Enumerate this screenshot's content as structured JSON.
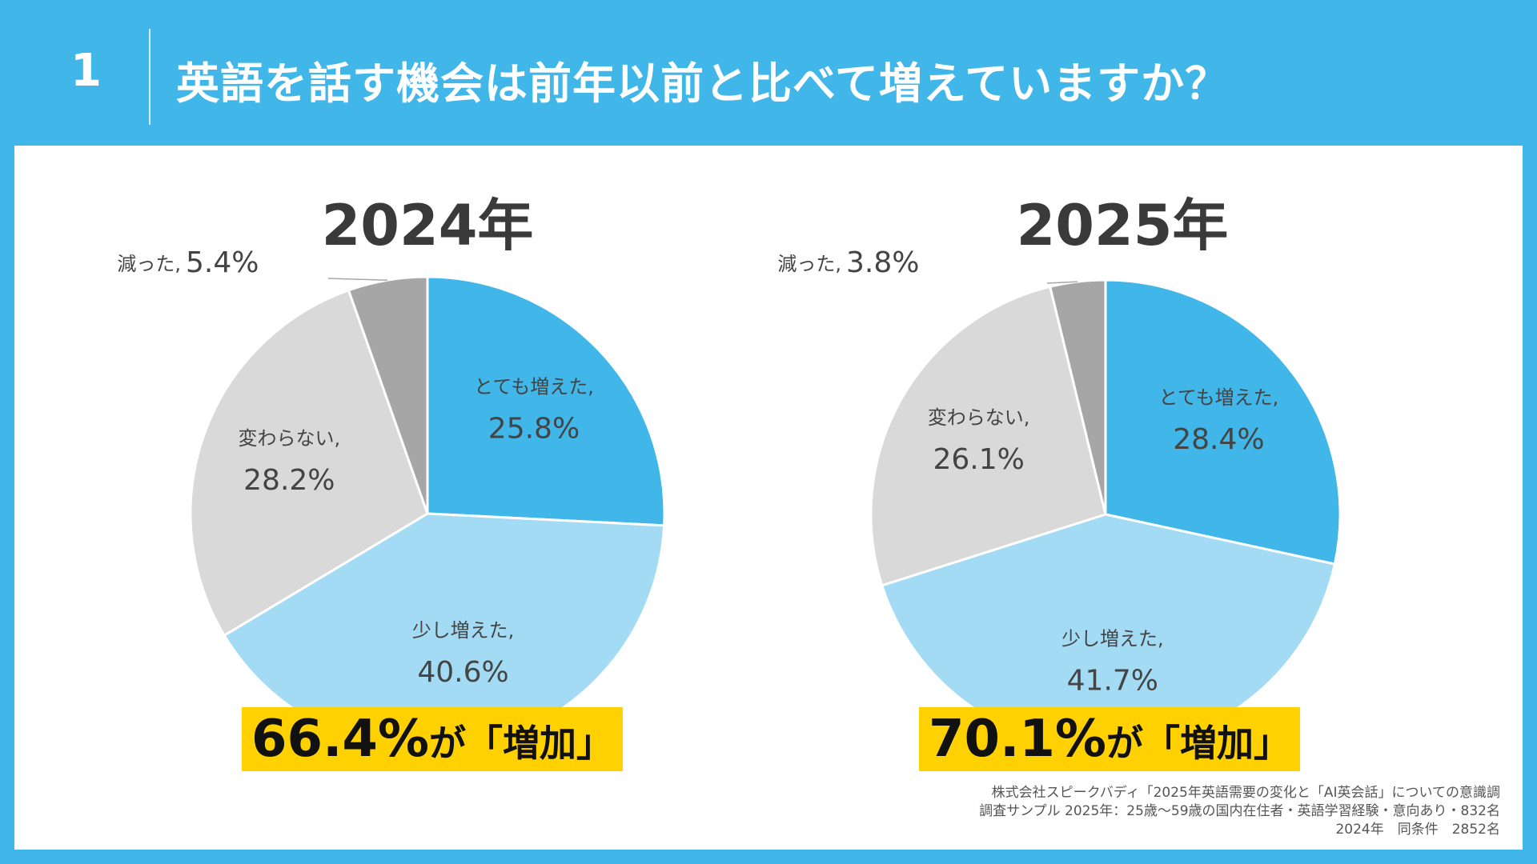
{
  "header": {
    "number": "1",
    "title": "英語を話す機会は前年以前と比べて増えていますか？"
  },
  "colors": {
    "background": "#41b6e9",
    "highlight": "#ffd100"
  },
  "chart_data": [
    {
      "type": "pie",
      "title": "2024年",
      "labels": [
        "とても増えた,",
        "少し増えた,",
        "変わらない,",
        "減った,"
      ],
      "values": [
        25.8,
        40.6,
        28.2,
        5.4
      ],
      "value_labels": [
        "25.8%",
        "40.6%",
        "28.2%",
        "5.4%"
      ],
      "colors": [
        "#41b6e9",
        "#a3dbf5",
        "#d9d9d9",
        "#a6a6a6"
      ],
      "summary": {
        "value": "66.4%",
        "text": "が「増加」"
      }
    },
    {
      "type": "pie",
      "title": "2025年",
      "labels": [
        "とても増えた,",
        "少し増えた,",
        "変わらない,",
        "減った,"
      ],
      "values": [
        28.4,
        41.7,
        26.1,
        3.8
      ],
      "value_labels": [
        "28.4%",
        "41.7%",
        "26.1%",
        "3.8%"
      ],
      "colors": [
        "#41b6e9",
        "#a3dbf5",
        "#d9d9d9",
        "#a6a6a6"
      ],
      "summary": {
        "value": "70.1%",
        "text": "が「増加」"
      }
    }
  ],
  "source": {
    "line1": "株式会社スピークバディ「2025年英語需要の変化と「AI英会話」についての意識調",
    "line2": "調査サンプル 2025年：25歳〜59歳の国内在住者・英語学習経験・意向あり・832名",
    "line3": "2024年　同条件　2852名"
  }
}
